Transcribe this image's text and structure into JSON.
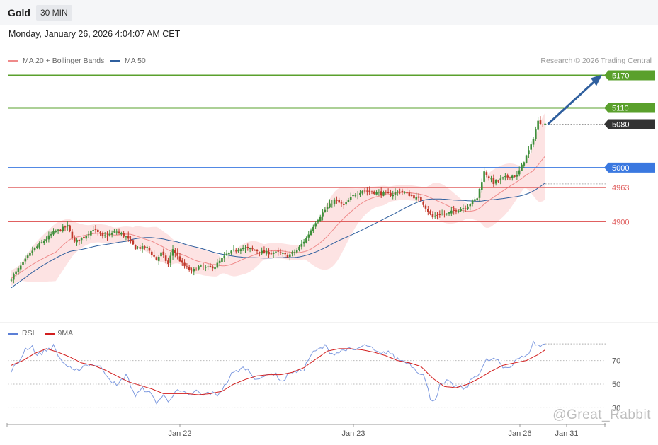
{
  "instrument": "Gold",
  "timeframe": "30 MIN",
  "datetime": "Monday, January 26, 2026 4:04:07 AM CET",
  "legend": [
    {
      "name": "MA 20 + Bollinger Bands",
      "color": "#ef8a8a"
    },
    {
      "name": "MA 50",
      "color": "#2f5f9e"
    }
  ],
  "credit": "Research © 2026 Trading Central",
  "rsi_legend": [
    {
      "name": "RSI",
      "color": "#5b7fd6"
    },
    {
      "name": "9MA",
      "color": "#d21f1f"
    }
  ],
  "watermark": "@Great_Rabbit",
  "colors": {
    "resistance": "#5aa02c",
    "pivot": "#3a78e0",
    "support": "#e06060",
    "current": "#333333",
    "up_candle": "#3f8e3a",
    "down_candle": "#c0392b",
    "band_fill": "#fde0e0"
  },
  "chart_data": [
    {
      "type": "candlestick",
      "y_axis": "price",
      "ylim": [
        4760,
        5185
      ],
      "x_ticks": [
        "Jan 22",
        "Jan 23",
        "Jan 26",
        "Jan 31"
      ],
      "levels": [
        {
          "label": "5170",
          "value": 5170,
          "kind": "resistance"
        },
        {
          "label": "5110",
          "value": 5110,
          "kind": "resistance"
        },
        {
          "label": "5080",
          "value": 5080,
          "kind": "current"
        },
        {
          "label": "5000",
          "value": 5000,
          "kind": "pivot"
        },
        {
          "label": "4963",
          "value": 4963,
          "kind": "support"
        },
        {
          "label": "4900",
          "value": 4900,
          "kind": "support"
        }
      ],
      "target_arrow": {
        "from": 5080,
        "to": 5170
      },
      "series": [
        {
          "name": "MA 20 + Bollinger Bands"
        },
        {
          "name": "MA 50"
        }
      ],
      "close_anchors": [
        [
          0,
          4796
        ],
        [
          4,
          4818
        ],
        [
          9,
          4847
        ],
        [
          14,
          4865
        ],
        [
          18,
          4880
        ],
        [
          24,
          4892
        ],
        [
          27,
          4862
        ],
        [
          31,
          4872
        ],
        [
          35,
          4887
        ],
        [
          39,
          4872
        ],
        [
          45,
          4882
        ],
        [
          49,
          4872
        ],
        [
          53,
          4852
        ],
        [
          58,
          4852
        ],
        [
          62,
          4830
        ],
        [
          64,
          4842
        ],
        [
          67,
          4822
        ],
        [
          69,
          4850
        ],
        [
          73,
          4822
        ],
        [
          77,
          4808
        ],
        [
          80,
          4817
        ],
        [
          84,
          4815
        ],
        [
          87,
          4818
        ],
        [
          92,
          4840
        ],
        [
          98,
          4852
        ],
        [
          104,
          4848
        ],
        [
          108,
          4843
        ],
        [
          114,
          4843
        ],
        [
          118,
          4837
        ],
        [
          122,
          4847
        ],
        [
          126,
          4870
        ],
        [
          130,
          4900
        ],
        [
          134,
          4922
        ],
        [
          138,
          4940
        ],
        [
          142,
          4930
        ],
        [
          146,
          4948
        ],
        [
          150,
          4958
        ],
        [
          154,
          4955
        ],
        [
          158,
          4953
        ],
        [
          162,
          4950
        ],
        [
          166,
          4957
        ],
        [
          170,
          4950
        ],
        [
          175,
          4940
        ],
        [
          178,
          4920
        ],
        [
          180,
          4908
        ],
        [
          183,
          4915
        ],
        [
          186,
          4914
        ],
        [
          190,
          4922
        ],
        [
          194,
          4927
        ],
        [
          199,
          4944
        ],
        [
          202,
          4992
        ],
        [
          206,
          4972
        ],
        [
          210,
          4980
        ],
        [
          214,
          4985
        ],
        [
          216,
          4985
        ],
        [
          218,
          5003
        ],
        [
          222,
          5040
        ],
        [
          225,
          5085
        ],
        [
          228,
          5080
        ]
      ]
    },
    {
      "type": "line",
      "y_axis": "RSI",
      "ylim": [
        28,
        92
      ],
      "y_ticks": [
        "70",
        "50",
        "30"
      ],
      "series": [
        {
          "name": "RSI"
        },
        {
          "name": "9MA"
        }
      ],
      "rsi_anchors": [
        [
          0,
          62
        ],
        [
          3,
          68
        ],
        [
          6,
          80
        ],
        [
          9,
          82
        ],
        [
          11,
          74
        ],
        [
          14,
          78
        ],
        [
          18,
          82
        ],
        [
          21,
          71
        ],
        [
          24,
          65
        ],
        [
          27,
          60
        ],
        [
          31,
          66
        ],
        [
          35,
          67
        ],
        [
          39,
          63
        ],
        [
          42,
          55
        ],
        [
          45,
          48
        ],
        [
          49,
          58
        ],
        [
          53,
          40
        ],
        [
          56,
          46
        ],
        [
          58,
          45
        ],
        [
          62,
          35
        ],
        [
          65,
          40
        ],
        [
          67,
          36
        ],
        [
          70,
          44
        ],
        [
          73,
          43
        ],
        [
          76,
          40
        ],
        [
          79,
          44
        ],
        [
          82,
          40
        ],
        [
          84,
          43
        ],
        [
          86,
          42
        ],
        [
          88,
          41
        ],
        [
          91,
          48
        ],
        [
          94,
          58
        ],
        [
          97,
          62
        ],
        [
          100,
          64
        ],
        [
          104,
          56
        ],
        [
          107,
          54
        ],
        [
          110,
          60
        ],
        [
          113,
          58
        ],
        [
          116,
          52
        ],
        [
          119,
          60
        ],
        [
          122,
          60
        ],
        [
          125,
          63
        ],
        [
          128,
          75
        ],
        [
          131,
          79
        ],
        [
          134,
          82
        ],
        [
          137,
          76
        ],
        [
          140,
          77
        ],
        [
          143,
          80
        ],
        [
          146,
          78
        ],
        [
          149,
          81
        ],
        [
          152,
          83
        ],
        [
          155,
          78
        ],
        [
          158,
          75
        ],
        [
          161,
          78
        ],
        [
          164,
          72
        ],
        [
          167,
          70
        ],
        [
          170,
          68
        ],
        [
          173,
          62
        ],
        [
          176,
          58
        ],
        [
          178,
          45
        ],
        [
          179,
          38
        ],
        [
          181,
          37
        ],
        [
          183,
          48
        ],
        [
          186,
          52
        ],
        [
          190,
          48
        ],
        [
          194,
          46
        ],
        [
          197,
          55
        ],
        [
          200,
          60
        ],
        [
          203,
          70
        ],
        [
          207,
          71
        ],
        [
          210,
          64
        ],
        [
          213,
          65
        ],
        [
          216,
          72
        ],
        [
          220,
          73
        ],
        [
          223,
          85
        ],
        [
          226,
          82
        ],
        [
          228,
          84
        ]
      ],
      "ma_anchors": [
        [
          0,
          66
        ],
        [
          5,
          70
        ],
        [
          10,
          76
        ],
        [
          15,
          80
        ],
        [
          20,
          77
        ],
        [
          25,
          73
        ],
        [
          30,
          68
        ],
        [
          35,
          66
        ],
        [
          40,
          62
        ],
        [
          45,
          57
        ],
        [
          50,
          52
        ],
        [
          55,
          49
        ],
        [
          60,
          46
        ],
        [
          65,
          42
        ],
        [
          70,
          42
        ],
        [
          75,
          42
        ],
        [
          80,
          41
        ],
        [
          85,
          42
        ],
        [
          90,
          44
        ],
        [
          95,
          50
        ],
        [
          100,
          54
        ],
        [
          105,
          57
        ],
        [
          110,
          58
        ],
        [
          115,
          58
        ],
        [
          120,
          60
        ],
        [
          125,
          64
        ],
        [
          130,
          71
        ],
        [
          135,
          78
        ],
        [
          140,
          80
        ],
        [
          145,
          80
        ],
        [
          150,
          79
        ],
        [
          155,
          77
        ],
        [
          160,
          74
        ],
        [
          165,
          70
        ],
        [
          170,
          68
        ],
        [
          175,
          65
        ],
        [
          180,
          55
        ],
        [
          185,
          48
        ],
        [
          190,
          47
        ],
        [
          195,
          50
        ],
        [
          200,
          55
        ],
        [
          205,
          61
        ],
        [
          210,
          66
        ],
        [
          215,
          68
        ],
        [
          220,
          70
        ],
        [
          225,
          75
        ],
        [
          228,
          79
        ]
      ]
    }
  ]
}
